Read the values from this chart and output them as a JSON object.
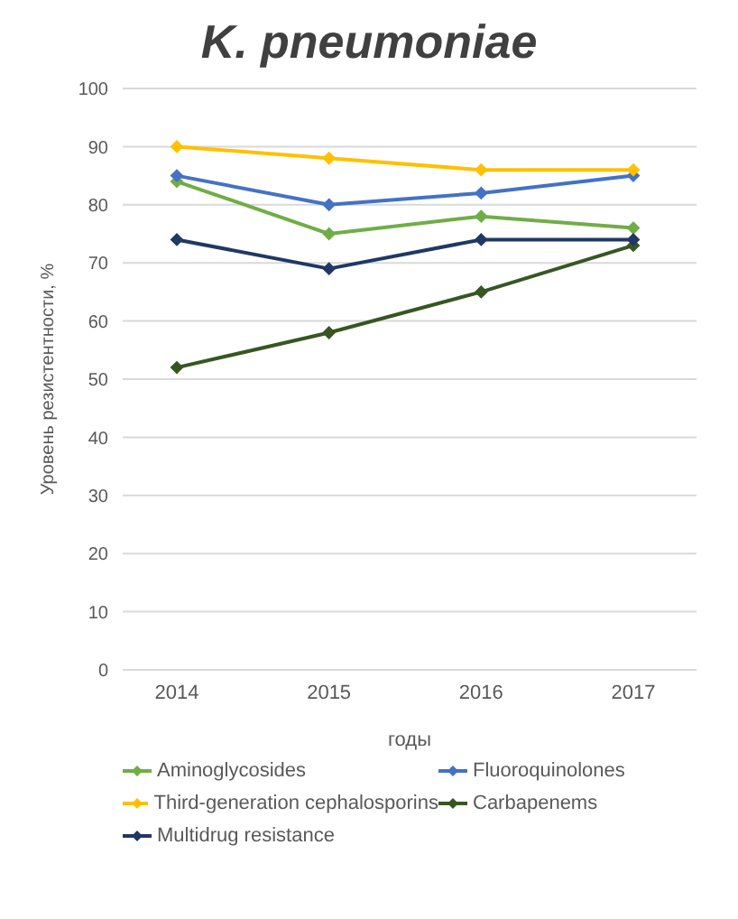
{
  "chart_data": {
    "type": "line",
    "title": "K. pneumoniae",
    "xlabel": "годы",
    "ylabel": "Уровень резистентности, %",
    "categories": [
      "2014",
      "2015",
      "2016",
      "2017"
    ],
    "series": [
      {
        "name": "Aminoglycosides",
        "color": "#70ad47",
        "values": [
          84,
          75,
          78,
          76
        ]
      },
      {
        "name": "Fluoroquinolones",
        "color": "#4472c4",
        "values": [
          85,
          80,
          82,
          85
        ]
      },
      {
        "name": "Third-generation cephalosporins",
        "color": "#ffc000",
        "values": [
          90,
          88,
          86,
          86
        ]
      },
      {
        "name": "Carbapenems",
        "color": "#375623",
        "values": [
          52,
          58,
          65,
          73
        ]
      },
      {
        "name": "Multidrug resistance",
        "color": "#203864",
        "values": [
          74,
          69,
          74,
          74
        ]
      }
    ],
    "ylim": [
      0,
      100
    ],
    "yticks": [
      0,
      10,
      20,
      30,
      40,
      50,
      60,
      70,
      80,
      90,
      100
    ],
    "grid": "y",
    "legend": "bottom",
    "marker": "diamond",
    "line_style": "solid"
  }
}
